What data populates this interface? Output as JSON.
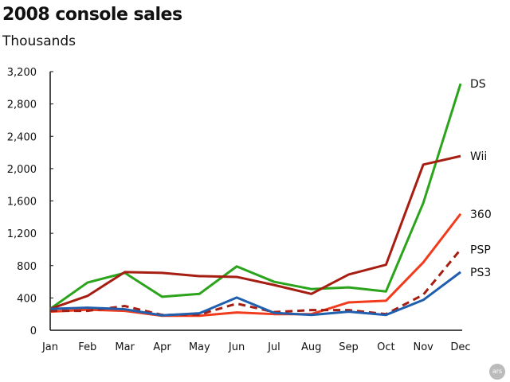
{
  "chart_data": {
    "type": "line",
    "title": "2008 console sales",
    "ylabel": "Thousands",
    "xlabel": "",
    "categories": [
      "Jan",
      "Feb",
      "Mar",
      "Apr",
      "May",
      "Jun",
      "Jul",
      "Aug",
      "Sep",
      "Oct",
      "Nov",
      "Dec"
    ],
    "ylim": [
      0,
      3200
    ],
    "yticks": [
      "0",
      "400",
      "800",
      "1,200",
      "1,600",
      "2,000",
      "2,400",
      "2,800",
      "3,200"
    ],
    "grid": false,
    "legend": "inline-right",
    "series": [
      {
        "name": "DS",
        "color": "#2ba41c",
        "dashed": false,
        "values": [
          265,
          590,
          710,
          415,
          450,
          790,
          600,
          510,
          530,
          480,
          1575,
          3050
        ]
      },
      {
        "name": "Wii",
        "color": "#a61d12",
        "dashed": false,
        "values": [
          265,
          425,
          720,
          710,
          670,
          660,
          560,
          450,
          690,
          810,
          2050,
          2155
        ]
      },
      {
        "name": "360",
        "color": "#f03c1c",
        "dashed": false,
        "values": [
          230,
          255,
          240,
          180,
          180,
          220,
          200,
          200,
          345,
          365,
          840,
          1440
        ]
      },
      {
        "name": "PSP",
        "color": "#a61d12",
        "dashed": true,
        "values": [
          240,
          240,
          300,
          190,
          195,
          330,
          225,
          250,
          250,
          200,
          440,
          1000
        ]
      },
      {
        "name": "PS3",
        "color": "#1f5fae",
        "dashed": false,
        "values": [
          265,
          280,
          260,
          185,
          210,
          405,
          215,
          190,
          230,
          190,
          375,
          720
        ]
      }
    ]
  },
  "logo": "ars"
}
